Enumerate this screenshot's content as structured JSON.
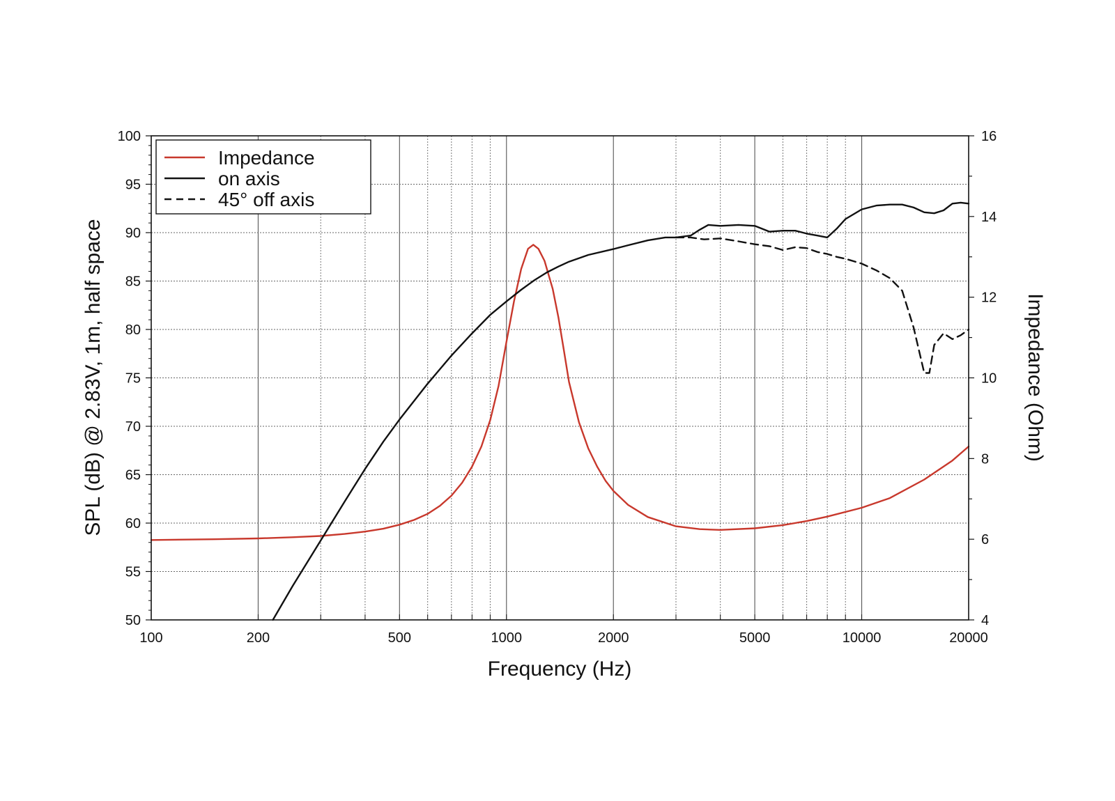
{
  "chart_data": {
    "type": "line",
    "title": "",
    "xlabel": "Frequency (Hz)",
    "ylabel": "SPL (dB) @ 2.83V, 1m, half space",
    "y2label": "Impedance (Ohm)",
    "xscale": "log",
    "xlim": [
      100,
      20000
    ],
    "ylim": [
      50,
      100
    ],
    "y2lim": [
      4,
      16
    ],
    "grid": true,
    "legend_position": "top-left",
    "x_ticks": [
      {
        "value": 100,
        "label": "100"
      },
      {
        "value": 200,
        "label": "200"
      },
      {
        "value": 500,
        "label": "500"
      },
      {
        "value": 1000,
        "label": "1000"
      },
      {
        "value": 2000,
        "label": "2000"
      },
      {
        "value": 5000,
        "label": "5000"
      },
      {
        "value": 10000,
        "label": "10000"
      },
      {
        "value": 20000,
        "label": "20000"
      }
    ],
    "y_ticks": [
      {
        "value": 100,
        "label": "100"
      },
      {
        "value": 95,
        "label": "95"
      },
      {
        "value": 90,
        "label": "90"
      },
      {
        "value": 85,
        "label": "85"
      },
      {
        "value": 80,
        "label": "80"
      },
      {
        "value": 75,
        "label": "75"
      },
      {
        "value": 70,
        "label": "70"
      },
      {
        "value": 65,
        "label": "65"
      },
      {
        "value": 60,
        "label": "60"
      },
      {
        "value": 55,
        "label": "55"
      },
      {
        "value": 50,
        "label": "50"
      }
    ],
    "y2_ticks": [
      {
        "value": 16,
        "label": "16"
      },
      {
        "value": 14,
        "label": "14"
      },
      {
        "value": 12,
        "label": "12"
      },
      {
        "value": 10,
        "label": "10"
      },
      {
        "value": 8,
        "label": "8"
      },
      {
        "value": 6,
        "label": "6"
      },
      {
        "value": 4,
        "label": "4"
      }
    ],
    "series": [
      {
        "name": "Impedance",
        "axis": "right",
        "style": "solid",
        "color": "#c8382c",
        "x": [
          100,
          150,
          200,
          250,
          300,
          350,
          400,
          450,
          500,
          550,
          600,
          650,
          700,
          750,
          800,
          850,
          900,
          950,
          1000,
          1050,
          1100,
          1150,
          1190,
          1230,
          1280,
          1350,
          1400,
          1450,
          1500,
          1600,
          1700,
          1800,
          1900,
          2000,
          2200,
          2500,
          3000,
          3500,
          4000,
          5000,
          6000,
          7000,
          8000,
          10000,
          12000,
          15000,
          18000,
          20000
        ],
        "values": [
          5.98,
          6.0,
          6.02,
          6.05,
          6.08,
          6.13,
          6.19,
          6.26,
          6.36,
          6.48,
          6.63,
          6.83,
          7.08,
          7.4,
          7.8,
          8.3,
          8.95,
          9.8,
          10.9,
          11.9,
          12.7,
          13.2,
          13.3,
          13.2,
          12.9,
          12.2,
          11.5,
          10.7,
          9.9,
          8.9,
          8.25,
          7.8,
          7.45,
          7.2,
          6.85,
          6.55,
          6.32,
          6.25,
          6.23,
          6.27,
          6.35,
          6.45,
          6.56,
          6.78,
          7.02,
          7.48,
          7.95,
          8.3
        ]
      },
      {
        "name": "on axis",
        "axis": "left",
        "style": "solid",
        "color": "#111111",
        "x": [
          220,
          250,
          300,
          350,
          400,
          450,
          500,
          600,
          700,
          800,
          900,
          1000,
          1100,
          1200,
          1300,
          1400,
          1500,
          1700,
          2000,
          2200,
          2500,
          2800,
          3000,
          3300,
          3500,
          3700,
          4000,
          4500,
          5000,
          5500,
          6000,
          6500,
          7000,
          7500,
          8000,
          8500,
          9000,
          10000,
          11000,
          12000,
          13000,
          14000,
          15000,
          16000,
          17000,
          18000,
          19000,
          20000
        ],
        "values": [
          50,
          53.5,
          58.2,
          62.2,
          65.6,
          68.4,
          70.7,
          74.4,
          77.3,
          79.6,
          81.5,
          82.9,
          84.1,
          85.1,
          85.9,
          86.5,
          87,
          87.7,
          88.3,
          88.7,
          89.2,
          89.5,
          89.5,
          89.7,
          90.3,
          90.8,
          90.7,
          90.8,
          90.7,
          90.1,
          90.2,
          90.2,
          89.9,
          89.7,
          89.5,
          90.4,
          91.4,
          92.4,
          92.8,
          92.9,
          92.9,
          92.6,
          92.1,
          92.0,
          92.3,
          93.0,
          93.1,
          93.0
        ]
      },
      {
        "name": "45° off axis",
        "axis": "left",
        "style": "dashed",
        "color": "#111111",
        "x": [
          3000,
          3300,
          3600,
          4000,
          4500,
          5000,
          5500,
          6000,
          6500,
          7000,
          7500,
          8000,
          8500,
          9000,
          10000,
          11000,
          12000,
          13000,
          14000,
          15000,
          15500,
          16000,
          17000,
          18000,
          19000,
          20000
        ],
        "values": [
          89.5,
          89.5,
          89.3,
          89.4,
          89.1,
          88.8,
          88.6,
          88.2,
          88.5,
          88.4,
          88.0,
          87.8,
          87.5,
          87.3,
          86.8,
          86.1,
          85.3,
          84.0,
          80.2,
          75.5,
          75.5,
          78.4,
          79.6,
          79.0,
          79.4,
          80.0
        ]
      }
    ]
  }
}
